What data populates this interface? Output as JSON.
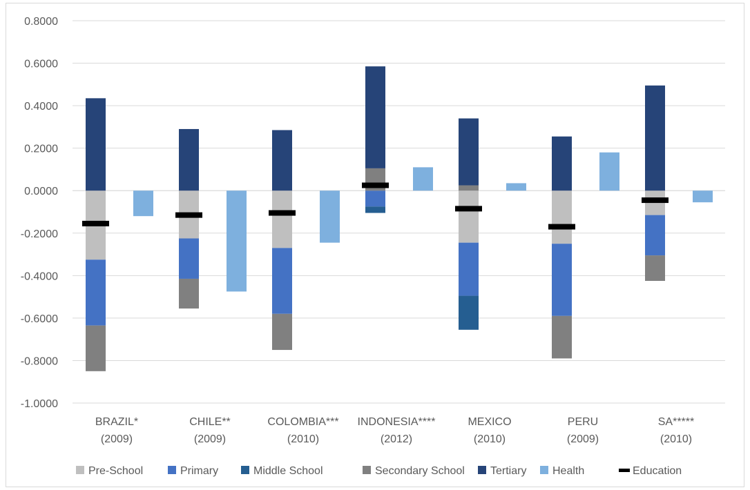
{
  "chart_data": {
    "type": "bar",
    "stacked": true,
    "title": "",
    "xlabel": "",
    "ylabel": "",
    "ylim": [
      -1.0,
      0.8
    ],
    "yticks": [
      0.8,
      0.6,
      0.4,
      0.2,
      0.0,
      -0.2,
      -0.4,
      -0.6,
      -0.8,
      -1.0
    ],
    "ytick_labels": [
      "0.8000",
      "0.6000",
      "0.4000",
      "0.2000",
      "0.0000",
      "-0.2000",
      "-0.4000",
      "-0.6000",
      "-0.8000",
      "-1.0000"
    ],
    "grid": true,
    "legend_position": "bottom",
    "categories": [
      {
        "line1": "BRAZIL*",
        "line2": "(2009)"
      },
      {
        "line1": "CHILE**",
        "line2": "(2009)"
      },
      {
        "line1": "COLOMBIA***",
        "line2": "(2010)"
      },
      {
        "line1": "INDONESIA****",
        "line2": "(2012)"
      },
      {
        "line1": "MEXICO",
        "line2": "(2010)"
      },
      {
        "line1": "PERU",
        "line2": "(2009)"
      },
      {
        "line1": "SA*****",
        "line2": "(2010)"
      }
    ],
    "education_series": [
      {
        "name": "Pre-School",
        "color": "#bfbfbf",
        "values": [
          -0.325,
          -0.225,
          -0.27,
          0.0,
          -0.245,
          -0.25,
          -0.115
        ]
      },
      {
        "name": "Primary",
        "color": "#4472c4",
        "values": [
          -0.31,
          -0.19,
          -0.31,
          -0.075,
          -0.25,
          -0.34,
          -0.19
        ]
      },
      {
        "name": "Middle School",
        "color": "#255e91",
        "values": [
          0.0,
          0.0,
          0.0,
          -0.03,
          -0.16,
          0.0,
          0.0
        ]
      },
      {
        "name": "Secondary School",
        "color": "#808080",
        "values": [
          -0.215,
          -0.14,
          -0.17,
          0.105,
          0.025,
          -0.2,
          -0.12
        ]
      },
      {
        "name": "Tertiary",
        "color": "#264478",
        "values": [
          0.435,
          0.29,
          0.285,
          0.48,
          0.315,
          0.255,
          0.495
        ]
      }
    ],
    "health": {
      "name": "Health",
      "color": "#7eb0de",
      "values": [
        -0.12,
        -0.475,
        -0.245,
        0.11,
        0.035,
        0.18,
        -0.055
      ]
    },
    "education_total": {
      "name": "Education",
      "color": "#000000",
      "values": [
        -0.155,
        -0.115,
        -0.105,
        0.025,
        -0.085,
        -0.17,
        -0.045
      ]
    }
  }
}
